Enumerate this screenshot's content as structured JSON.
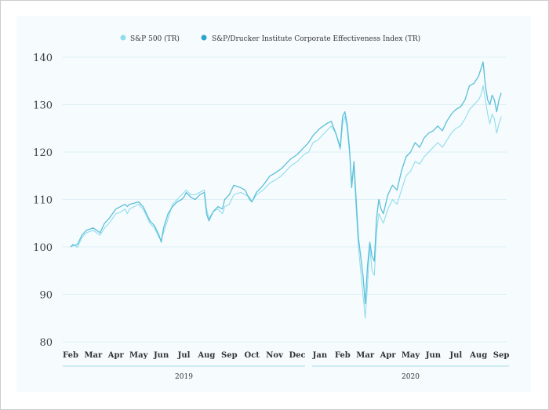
{
  "chart_data": {
    "type": "line",
    "title": "",
    "xlabel": "",
    "ylabel": "",
    "ylim": [
      80,
      140
    ],
    "yticks": [
      80,
      90,
      100,
      110,
      120,
      130,
      140
    ],
    "grid": "horizontal",
    "legend_position": "top",
    "x_months": [
      "Feb",
      "Mar",
      "Apr",
      "May",
      "Jun",
      "Jul",
      "Aug",
      "Sep",
      "Oct",
      "Nov",
      "Dec",
      "Jan",
      "Feb",
      "Mar",
      "Apr",
      "May",
      "Jun",
      "Jul",
      "Aug",
      "Sep"
    ],
    "x_years": [
      {
        "label": "2019",
        "first_month": 0,
        "last_month": 10
      },
      {
        "label": "2020",
        "first_month": 11,
        "last_month": 19
      }
    ],
    "x": [
      0,
      0.1,
      0.3,
      0.5,
      0.7,
      1.0,
      1.3,
      1.5,
      1.7,
      2.0,
      2.2,
      2.4,
      2.5,
      2.6,
      2.8,
      3.0,
      3.2,
      3.5,
      3.7,
      3.9,
      4.0,
      4.1,
      4.3,
      4.5,
      4.7,
      4.9,
      5.0,
      5.1,
      5.3,
      5.5,
      5.7,
      5.9,
      6.0,
      6.1,
      6.3,
      6.5,
      6.7,
      6.8,
      7.0,
      7.2,
      7.5,
      7.7,
      7.9,
      8.0,
      8.2,
      8.5,
      8.8,
      9.0,
      9.3,
      9.5,
      9.7,
      10.0,
      10.3,
      10.5,
      10.7,
      10.9,
      11.0,
      11.3,
      11.5,
      11.7,
      11.9,
      12.0,
      12.1,
      12.2,
      12.3,
      12.4,
      12.5,
      12.6,
      12.7,
      12.8,
      12.9,
      13.0,
      13.1,
      13.2,
      13.3,
      13.4,
      13.5,
      13.6,
      13.7,
      13.8,
      14.0,
      14.2,
      14.4,
      14.6,
      14.8,
      15.0,
      15.2,
      15.4,
      15.6,
      15.8,
      16.0,
      16.2,
      16.4,
      16.6,
      16.8,
      17.0,
      17.2,
      17.4,
      17.6,
      17.8,
      18.0,
      18.1,
      18.2,
      18.3,
      18.4,
      18.5,
      18.6,
      18.7,
      18.8,
      18.9,
      19.0
    ],
    "series": [
      {
        "name": "S&P 500 (TR)",
        "color": "#8fdcef",
        "values": [
          100,
          100.6,
          99.9,
          102.0,
          103.0,
          103.5,
          102.5,
          104.0,
          105.0,
          107.0,
          107.3,
          108.0,
          107.0,
          108.0,
          108.5,
          109.0,
          108.0,
          105.0,
          104.0,
          102.0,
          101.5,
          103.0,
          106.0,
          109.0,
          110.0,
          111.0,
          111.5,
          112.0,
          111.0,
          111.0,
          111.5,
          112.0,
          108.0,
          106.0,
          107.5,
          108.0,
          107.0,
          108.5,
          109.0,
          111.0,
          111.5,
          111.0,
          110.5,
          109.5,
          111.0,
          112.0,
          113.5,
          114.0,
          115.0,
          116.0,
          117.0,
          118.0,
          119.5,
          120.0,
          122.0,
          122.5,
          123.0,
          124.5,
          125.5,
          124.0,
          120.5,
          126.0,
          127.5,
          125.0,
          120.0,
          114.0,
          117.0,
          108.0,
          100.0,
          95.0,
          90.0,
          85.0,
          92.0,
          100.0,
          95.0,
          94.0,
          103.0,
          107.0,
          106.0,
          105.0,
          108.0,
          110.0,
          109.0,
          112.0,
          115.0,
          116.0,
          118.0,
          117.5,
          119.0,
          120.0,
          121.0,
          122.0,
          121.0,
          122.5,
          124.0,
          125.0,
          125.5,
          127.0,
          129.0,
          130.0,
          131.0,
          132.0,
          134.0,
          131.0,
          128.0,
          126.0,
          128.0,
          127.0,
          124.0,
          126.0,
          127.5
        ]
      },
      {
        "name": "S&P/Drucker Institute Corporate Effectiveness Index (TR)",
        "color": "#5bbfd8",
        "values": [
          100,
          100.3,
          100.5,
          102.5,
          103.5,
          104.0,
          103.0,
          105.0,
          106.0,
          108.0,
          108.5,
          109.0,
          108.5,
          109.0,
          109.2,
          109.5,
          108.5,
          105.5,
          104.5,
          102.5,
          101.0,
          104.0,
          107.0,
          108.5,
          109.5,
          110.0,
          110.5,
          111.5,
          110.5,
          110.0,
          111.0,
          111.5,
          107.0,
          105.5,
          107.5,
          108.5,
          108.0,
          110.0,
          111.0,
          113.0,
          112.5,
          112.0,
          110.0,
          109.5,
          111.5,
          113.0,
          115.0,
          115.5,
          116.5,
          117.5,
          118.5,
          119.5,
          121.0,
          122.0,
          123.5,
          124.5,
          125.0,
          126.0,
          126.5,
          124.0,
          121.0,
          127.5,
          128.5,
          126.0,
          121.0,
          112.5,
          118.0,
          110.0,
          102.0,
          98.0,
          94.0,
          88.0,
          96.0,
          101.0,
          98.0,
          97.0,
          106.0,
          110.0,
          108.0,
          107.0,
          111.0,
          113.0,
          112.0,
          116.0,
          119.0,
          120.0,
          122.0,
          121.0,
          123.0,
          124.0,
          124.5,
          125.5,
          124.5,
          126.5,
          128.0,
          129.0,
          129.5,
          131.0,
          134.0,
          134.5,
          136.0,
          137.5,
          139.0,
          134.0,
          131.0,
          130.0,
          132.0,
          131.0,
          128.5,
          131.0,
          132.5
        ]
      }
    ]
  }
}
